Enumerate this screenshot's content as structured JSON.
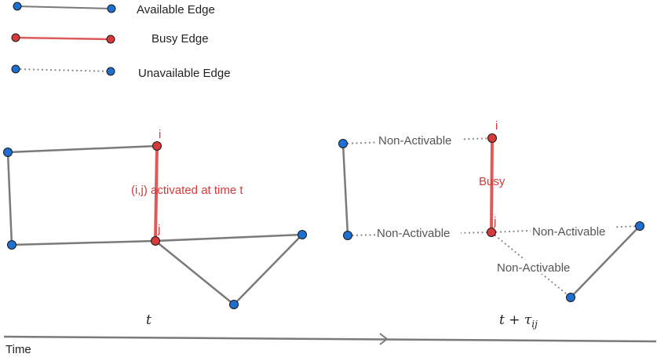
{
  "colors": {
    "available": "#7a7a7a",
    "busy": "#dd5a5a",
    "unavailable": "#8a8a8a",
    "node_blue": "#1f6fd1",
    "node_red": "#d63a3a",
    "node_stroke": "#1a1a1a",
    "red_text": "#d63a3a",
    "gray_text": "#555555"
  },
  "legend": {
    "available_label": "Available Edge",
    "busy_label": "Busy Edge",
    "unavailable_label": "Unavailable Edge"
  },
  "left_graph": {
    "node_i_label": "i",
    "node_j_label": "j",
    "edge_annotation": "(i,j) activated at time t",
    "time_label": "t"
  },
  "right_graph": {
    "node_i_label": "i",
    "node_j_label": "j",
    "busy_label": "Busy",
    "non_activable_top": "Non-Activable",
    "non_activable_left": "Non-Activable",
    "non_activable_right": "Non-Activable",
    "non_activable_diag": "Non-Activable",
    "time_label_base": "t + ",
    "time_label_tau": "τ",
    "time_label_sub": "ij"
  },
  "timeline": {
    "label": "Time"
  }
}
